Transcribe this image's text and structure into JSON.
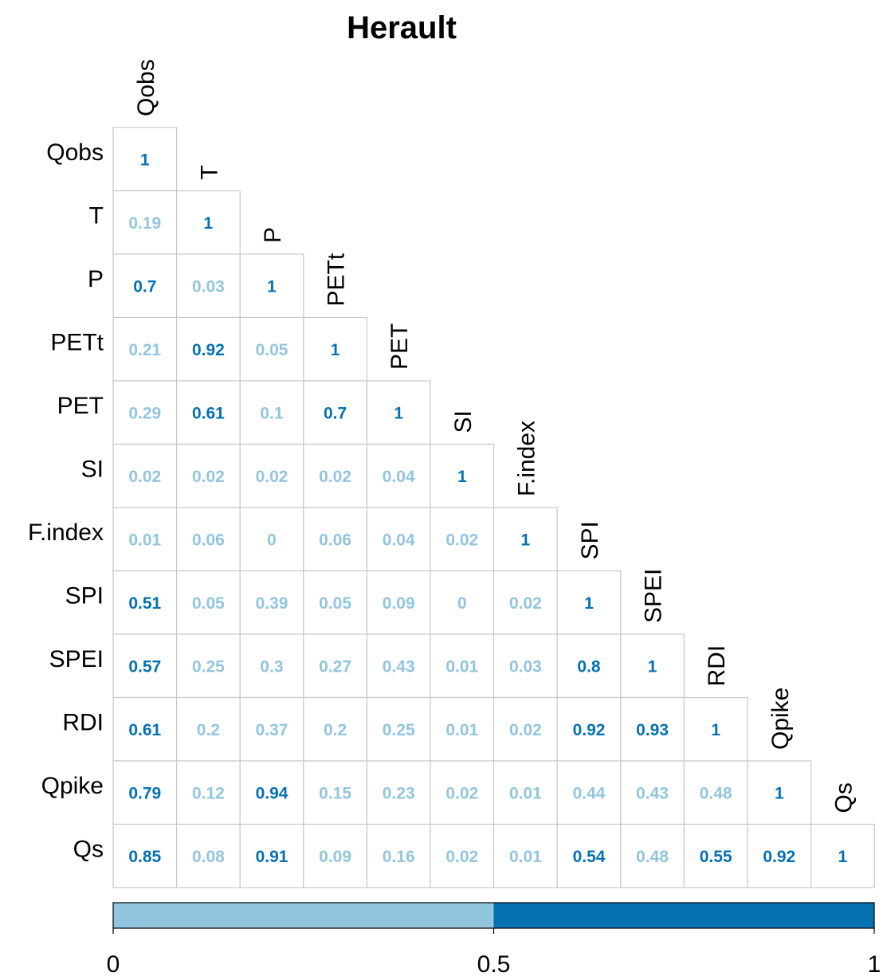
{
  "chart_data": {
    "type": "heatmap",
    "title": "Herault",
    "variables": [
      "Qobs",
      "T",
      "P",
      "PETt",
      "PET",
      "SI",
      "F.index",
      "SPI",
      "SPEI",
      "RDI",
      "Qpike",
      "Qs"
    ],
    "lower_triangle": [
      [
        "1"
      ],
      [
        "0.19",
        "1"
      ],
      [
        "0.7",
        "0.03",
        "1"
      ],
      [
        "0.21",
        "0.92",
        "0.05",
        "1"
      ],
      [
        "0.29",
        "0.61",
        "0.1",
        "0.7",
        "1"
      ],
      [
        "0.02",
        "0.02",
        "0.02",
        "0.02",
        "0.04",
        "1"
      ],
      [
        "0.01",
        "0.06",
        "0",
        "0.06",
        "0.04",
        "0.02",
        "1"
      ],
      [
        "0.51",
        "0.05",
        "0.39",
        "0.05",
        "0.09",
        "0",
        "0.02",
        "1"
      ],
      [
        "0.57",
        "0.25",
        "0.3",
        "0.27",
        "0.43",
        "0.01",
        "0.03",
        "0.8",
        "1"
      ],
      [
        "0.61",
        "0.2",
        "0.37",
        "0.2",
        "0.25",
        "0.01",
        "0.02",
        "0.92",
        "0.93",
        "1"
      ],
      [
        "0.79",
        "0.12",
        "0.94",
        "0.15",
        "0.23",
        "0.02",
        "0.01",
        "0.44",
        "0.43",
        "0.48",
        "1"
      ],
      [
        "0.85",
        "0.08",
        "0.91",
        "0.09",
        "0.16",
        "0.02",
        "0.01",
        "0.54",
        "0.48",
        "0.55",
        "0.92",
        "1"
      ]
    ],
    "color_scale": {
      "range": [
        0,
        1
      ],
      "threshold": 0.5,
      "ticks": [
        "0",
        "0.5",
        "1"
      ],
      "low_color": "#92c5de",
      "high_color": "#0571b0"
    },
    "grid": true,
    "legend": "bottom"
  }
}
